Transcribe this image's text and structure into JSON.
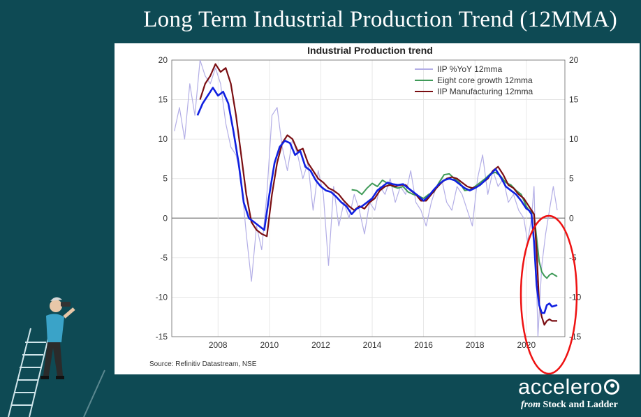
{
  "slide_title": "Long Term Industrial Production Trend (12MMA)",
  "brand": {
    "name": "accelero",
    "from": "from",
    "sub": "Stock and Ladder"
  },
  "chart_data": {
    "type": "line",
    "title": "Industrial Production trend",
    "source": "Source: Refinitiv Datastream, NSE",
    "xlim": [
      2006.2,
      2021.5
    ],
    "ylim": [
      -15,
      20
    ],
    "x_ticks": [
      "2008",
      "2010",
      "2012",
      "2014",
      "2016",
      "2018",
      "2020"
    ],
    "x_tick_values": [
      2008,
      2010,
      2012,
      2014,
      2016,
      2018,
      2020
    ],
    "y_ticks": [
      20,
      15,
      10,
      5,
      0,
      -5,
      -10,
      -15
    ],
    "grid": true,
    "legend_position": "top-right",
    "annotation": "red ellipse highlighting the 2020 collapse",
    "series": [
      {
        "name": "IIP %YoY 12mma",
        "color": "#b3aee6",
        "x": [
          2006.3,
          2006.5,
          2006.7,
          2006.9,
          2007.1,
          2007.3,
          2007.5,
          2007.7,
          2007.9,
          2008.1,
          2008.3,
          2008.5,
          2008.7,
          2008.9,
          2009.1,
          2009.3,
          2009.5,
          2009.7,
          2009.9,
          2010.1,
          2010.3,
          2010.5,
          2010.7,
          2010.9,
          2011.1,
          2011.3,
          2011.5,
          2011.7,
          2011.9,
          2012.1,
          2012.3,
          2012.5,
          2012.7,
          2012.9,
          2013.1,
          2013.3,
          2013.5,
          2013.7,
          2013.9,
          2014.1,
          2014.3,
          2014.5,
          2014.7,
          2014.9,
          2015.1,
          2015.3,
          2015.5,
          2015.7,
          2015.9,
          2016.1,
          2016.3,
          2016.5,
          2016.7,
          2016.9,
          2017.1,
          2017.3,
          2017.5,
          2017.7,
          2017.9,
          2018.1,
          2018.3,
          2018.5,
          2018.7,
          2018.9,
          2019.1,
          2019.3,
          2019.5,
          2019.7,
          2019.9,
          2020.05,
          2020.2,
          2020.3,
          2020.45,
          2020.6,
          2020.75,
          2020.9,
          2021.05,
          2021.2
        ],
        "y": [
          11,
          14,
          10,
          17,
          13,
          20,
          18,
          17,
          19,
          17,
          12,
          9,
          8,
          5,
          -2,
          -8,
          -1,
          -4,
          3,
          13,
          14,
          9,
          6,
          10,
          8,
          5,
          7,
          1,
          6,
          3,
          -6,
          4,
          -1,
          2,
          0,
          3,
          1,
          -2,
          2,
          1,
          4,
          3,
          5,
          2,
          4,
          3,
          6,
          2,
          1,
          -1,
          2,
          4,
          5,
          2,
          1,
          4,
          3,
          1,
          -1,
          5,
          8,
          3,
          6,
          4,
          5,
          2,
          3,
          1,
          0,
          -3,
          0,
          4,
          -15,
          -6,
          -2,
          1,
          4,
          1
        ]
      },
      {
        "name": "Eight core growth 12mma",
        "color": "#3f9a58",
        "x": [
          2013.2,
          2013.4,
          2013.6,
          2013.8,
          2014.0,
          2014.2,
          2014.4,
          2014.6,
          2014.8,
          2015.0,
          2015.2,
          2015.4,
          2015.6,
          2015.8,
          2016.0,
          2016.2,
          2016.4,
          2016.6,
          2016.8,
          2017.0,
          2017.2,
          2017.4,
          2017.6,
          2017.8,
          2018.0,
          2018.2,
          2018.4,
          2018.6,
          2018.8,
          2019.0,
          2019.2,
          2019.4,
          2019.6,
          2019.8,
          2020.0,
          2020.1,
          2020.2,
          2020.3,
          2020.4,
          2020.5,
          2020.6,
          2020.7,
          2020.8,
          2020.9,
          2021.0,
          2021.2
        ],
        "y": [
          3.6,
          3.5,
          3.0,
          3.8,
          4.4,
          4.0,
          4.8,
          4.4,
          4.0,
          3.8,
          4.0,
          3.3,
          3.0,
          2.8,
          2.5,
          3.0,
          3.3,
          4.5,
          5.5,
          5.6,
          5.0,
          4.5,
          3.5,
          3.6,
          4.0,
          4.5,
          5.0,
          5.6,
          5.8,
          5.3,
          4.5,
          4.2,
          3.5,
          3.0,
          1.5,
          1.0,
          0.8,
          0.5,
          -2.5,
          -5.5,
          -6.8,
          -7.3,
          -7.6,
          -7.2,
          -7.0,
          -7.4
        ]
      },
      {
        "name": "IIP Manufacturing 12mma",
        "color": "#7a0e12",
        "x": [
          2007.3,
          2007.5,
          2007.7,
          2007.9,
          2008.1,
          2008.3,
          2008.5,
          2008.7,
          2008.9,
          2009.1,
          2009.3,
          2009.5,
          2009.7,
          2009.9,
          2010.1,
          2010.3,
          2010.5,
          2010.7,
          2010.9,
          2011.1,
          2011.3,
          2011.5,
          2011.7,
          2011.9,
          2012.1,
          2012.3,
          2012.5,
          2012.7,
          2012.9,
          2013.1,
          2013.3,
          2013.5,
          2013.7,
          2013.9,
          2014.1,
          2014.3,
          2014.5,
          2014.7,
          2014.9,
          2015.1,
          2015.3,
          2015.5,
          2015.7,
          2015.9,
          2016.1,
          2016.3,
          2016.5,
          2016.7,
          2016.9,
          2017.1,
          2017.3,
          2017.5,
          2017.7,
          2017.9,
          2018.1,
          2018.3,
          2018.5,
          2018.7,
          2018.9,
          2019.1,
          2019.3,
          2019.5,
          2019.7,
          2019.9,
          2020.1,
          2020.2,
          2020.3,
          2020.4,
          2020.5,
          2020.6,
          2020.7,
          2020.8,
          2020.9,
          2021.0,
          2021.2
        ],
        "y": [
          15,
          17,
          18,
          19.5,
          18.5,
          19,
          17,
          13,
          8,
          3,
          -0.5,
          -1.5,
          -2,
          -2.3,
          3,
          7,
          9.5,
          10.5,
          10,
          8.5,
          8.8,
          7,
          6,
          5,
          4.5,
          3.8,
          3.5,
          3,
          2.2,
          1.5,
          1,
          1.5,
          1.2,
          2,
          2.5,
          3.5,
          4,
          4.2,
          4,
          4.2,
          4.2,
          3.5,
          3,
          2.2,
          2.2,
          3,
          3.8,
          4.5,
          5,
          5.2,
          5,
          4.5,
          4,
          3.8,
          4,
          4.5,
          5,
          6,
          6.5,
          5.5,
          4.2,
          3.8,
          3,
          2.5,
          1.5,
          1,
          0.5,
          -4,
          -11,
          -12.5,
          -13.5,
          -13,
          -12.8,
          -13,
          -13
        ]
      },
      {
        "name": "",
        "color": "#1020e0",
        "x": [
          2007.2,
          2007.4,
          2007.6,
          2007.8,
          2008.0,
          2008.2,
          2008.4,
          2008.6,
          2008.8,
          2009.0,
          2009.2,
          2009.4,
          2009.6,
          2009.8,
          2010.0,
          2010.2,
          2010.4,
          2010.6,
          2010.8,
          2011.0,
          2011.2,
          2011.4,
          2011.6,
          2011.8,
          2012.0,
          2012.2,
          2012.4,
          2012.6,
          2012.8,
          2013.0,
          2013.2,
          2013.4,
          2013.6,
          2013.8,
          2014.0,
          2014.2,
          2014.4,
          2014.6,
          2014.8,
          2015.0,
          2015.2,
          2015.4,
          2015.6,
          2015.8,
          2016.0,
          2016.2,
          2016.4,
          2016.6,
          2016.8,
          2017.0,
          2017.2,
          2017.4,
          2017.6,
          2017.8,
          2018.0,
          2018.2,
          2018.4,
          2018.6,
          2018.8,
          2019.0,
          2019.2,
          2019.4,
          2019.6,
          2019.8,
          2020.0,
          2020.1,
          2020.2,
          2020.3,
          2020.4,
          2020.5,
          2020.6,
          2020.7,
          2020.8,
          2020.9,
          2021.0,
          2021.2
        ],
        "y": [
          13,
          14.5,
          15.5,
          16.5,
          15.5,
          16,
          14.5,
          11,
          7,
          2,
          0,
          -0.5,
          -1,
          -1.5,
          3,
          7,
          9,
          9.8,
          9.5,
          8,
          8.5,
          6.5,
          6,
          4.8,
          4,
          3.5,
          3.3,
          2.7,
          2,
          1.5,
          0.5,
          1.2,
          1.5,
          2,
          2.5,
          3.5,
          4,
          4.5,
          4.3,
          4.2,
          4.3,
          3.8,
          3.3,
          2.8,
          2.2,
          2.8,
          3.6,
          4.3,
          4.8,
          5,
          4.8,
          4.3,
          3.8,
          3.5,
          3.8,
          4.2,
          4.8,
          5.5,
          6.2,
          5.2,
          4,
          3.5,
          3,
          2.2,
          1.2,
          1,
          0.5,
          -3,
          -8.5,
          -11,
          -12,
          -12,
          -11,
          -10.8,
          -11.2,
          -11
        ]
      }
    ]
  }
}
